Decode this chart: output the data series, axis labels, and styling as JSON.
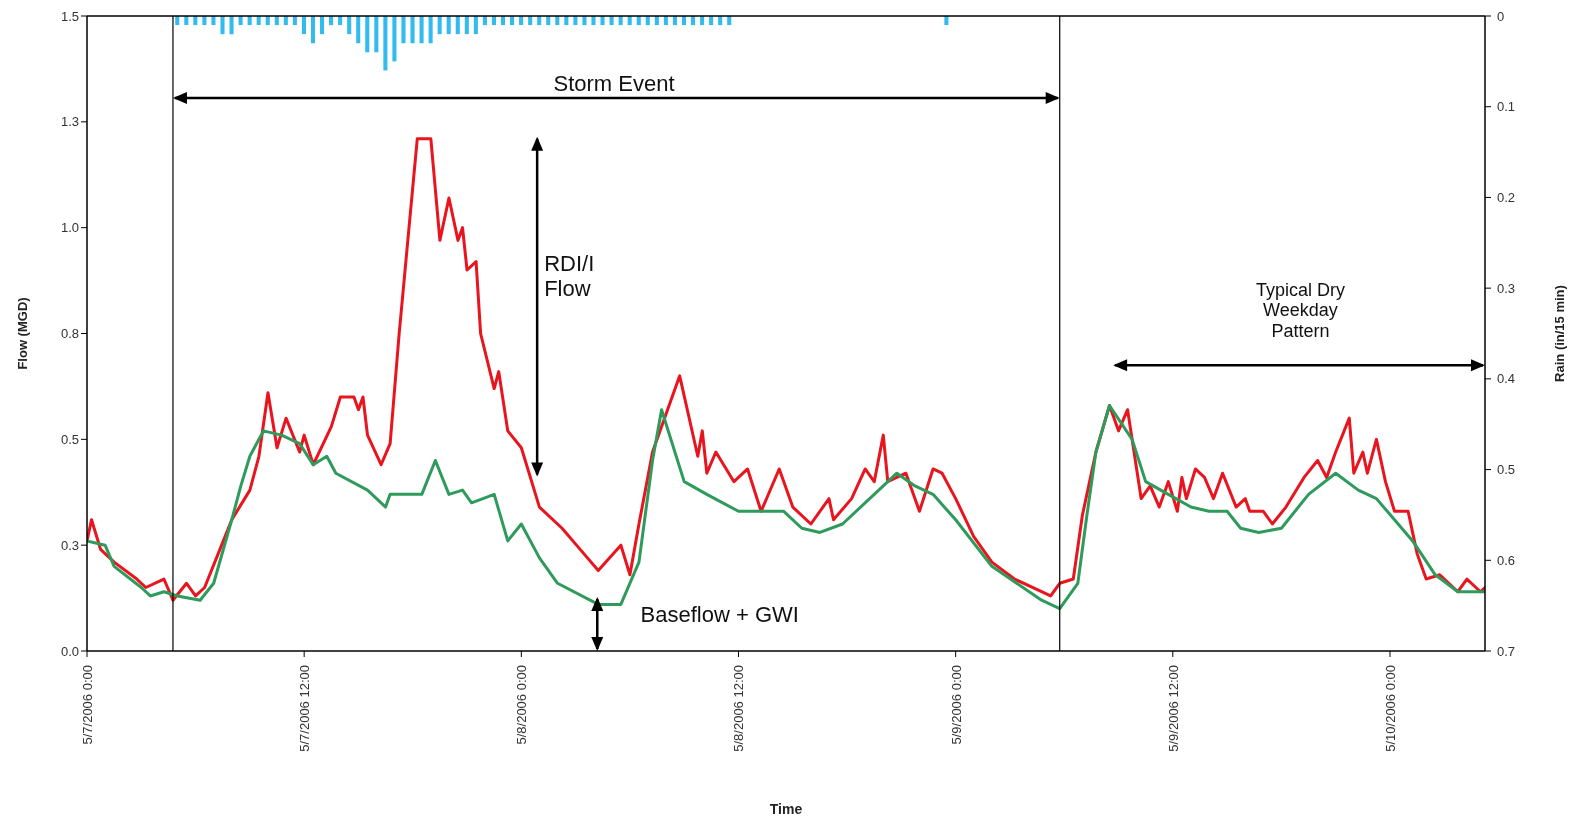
{
  "chart_data": {
    "type": "line",
    "xlabel": "Time",
    "ylabel": "Flow (MGD)",
    "y2label": "Rain (in/15 min)",
    "annotations": [
      "Storm Event",
      "RDI/I Flow",
      "Baseflow + GWI",
      "Typical Dry Weekday Pattern"
    ],
    "xlim": [
      "2006-05-07T00:00",
      "2006-05-10T05:15"
    ],
    "xticks": [
      {
        "value": "2006-05-07T00:00",
        "label": "5/7/2006 0:00"
      },
      {
        "value": "2006-05-07T12:00",
        "label": "5/7/2006 12:00"
      },
      {
        "value": "2006-05-08T00:00",
        "label": "5/8/2006 0:00"
      },
      {
        "value": "2006-05-08T12:00",
        "label": "5/8/2006 12:00"
      },
      {
        "value": "2006-05-09T00:00",
        "label": "5/9/2006 0:00"
      },
      {
        "value": "2006-05-09T12:00",
        "label": "5/9/2006 12:00"
      },
      {
        "value": "2006-05-10T00:00",
        "label": "5/10/2006 0:00"
      }
    ],
    "ylim": [
      0,
      1.5
    ],
    "yticks": [
      {
        "value": 0,
        "label": "0.0"
      },
      {
        "value": 0.25,
        "label": "0.3"
      },
      0.5,
      {
        "value": 0.75,
        "label": "0.8"
      },
      {
        "value": 1,
        "label": "1.0"
      },
      {
        "value": 1.25,
        "label": "1.3"
      },
      1.5
    ],
    "y2lim": [
      0.7,
      0
    ],
    "y2ticks": [
      0,
      0.1,
      0.2,
      0.3,
      0.4,
      0.5,
      0.6,
      0.7
    ],
    "ref_lines": [
      {
        "axis": "x",
        "value": "2006-05-07T04:45",
        "color": "#000000"
      },
      {
        "axis": "x",
        "value": "2006-05-09T05:45",
        "color": "#000000"
      }
    ],
    "series": [
      {
        "type": "bar",
        "axis": "y2",
        "color": "#33bbee",
        "x": [
          "2006-05-07T05:00",
          "2006-05-07T05:30",
          "2006-05-07T06:00",
          "2006-05-07T06:30",
          "2006-05-07T07:00",
          "2006-05-07T07:30",
          "2006-05-07T08:00",
          "2006-05-07T08:30",
          "2006-05-07T09:00",
          "2006-05-07T09:30",
          "2006-05-07T10:00",
          "2006-05-07T10:30",
          "2006-05-07T11:00",
          "2006-05-07T11:30",
          "2006-05-07T12:00",
          "2006-05-07T12:30",
          "2006-05-07T13:00",
          "2006-05-07T13:30",
          "2006-05-07T14:00",
          "2006-05-07T14:30",
          "2006-05-07T15:00",
          "2006-05-07T15:30",
          "2006-05-07T16:00",
          "2006-05-07T16:30",
          "2006-05-07T17:00",
          "2006-05-07T17:30",
          "2006-05-07T18:00",
          "2006-05-07T18:30",
          "2006-05-07T19:00",
          "2006-05-07T19:30",
          "2006-05-07T20:00",
          "2006-05-07T20:30",
          "2006-05-07T21:00",
          "2006-05-07T21:30",
          "2006-05-07T22:00",
          "2006-05-07T22:30",
          "2006-05-07T23:00",
          "2006-05-07T23:30",
          "2006-05-08T00:00",
          "2006-05-08T00:30",
          "2006-05-08T01:00",
          "2006-05-08T01:30",
          "2006-05-08T02:00",
          "2006-05-08T02:30",
          "2006-05-08T03:00",
          "2006-05-08T03:30",
          "2006-05-08T04:00",
          "2006-05-08T04:30",
          "2006-05-08T05:00",
          "2006-05-08T05:30",
          "2006-05-08T06:00",
          "2006-05-08T06:30",
          "2006-05-08T07:00",
          "2006-05-08T07:30",
          "2006-05-08T08:00",
          "2006-05-08T08:30",
          "2006-05-08T09:00",
          "2006-05-08T09:30",
          "2006-05-08T10:00",
          "2006-05-08T10:30",
          "2006-05-08T11:00",
          "2006-05-08T11:30",
          "2006-05-08T23:30"
        ],
        "values": [
          0.01,
          0.01,
          0.01,
          0.01,
          0.01,
          0.02,
          0.02,
          0.01,
          0.01,
          0.01,
          0.01,
          0.01,
          0.01,
          0.01,
          0.02,
          0.03,
          0.02,
          0.01,
          0.01,
          0.02,
          0.03,
          0.04,
          0.04,
          0.06,
          0.05,
          0.03,
          0.03,
          0.03,
          0.03,
          0.02,
          0.02,
          0.02,
          0.02,
          0.02,
          0.01,
          0.01,
          0.01,
          0.01,
          0.01,
          0.01,
          0.01,
          0.01,
          0.01,
          0.01,
          0.01,
          0.01,
          0.01,
          0.01,
          0.01,
          0.01,
          0.01,
          0.01,
          0.01,
          0.01,
          0.01,
          0.01,
          0.01,
          0.01,
          0.01,
          0.01,
          0.01,
          0.01,
          0.01
        ]
      },
      {
        "color": "#e8141e",
        "x": [
          "2006-05-07T00:00",
          "2006-05-07T00:15",
          "2006-05-07T00:45",
          "2006-05-07T01:30",
          "2006-05-07T02:45",
          "2006-05-07T03:15",
          "2006-05-07T04:15",
          "2006-05-07T04:45",
          "2006-05-07T05:30",
          "2006-05-07T06:00",
          "2006-05-07T06:30",
          "2006-05-07T07:15",
          "2006-05-07T08:00",
          "2006-05-07T09:00",
          "2006-05-07T09:30",
          "2006-05-07T10:00",
          "2006-05-07T10:30",
          "2006-05-07T11:00",
          "2006-05-07T11:45",
          "2006-05-07T12:00",
          "2006-05-07T12:30",
          "2006-05-07T13:30",
          "2006-05-07T14:00",
          "2006-05-07T14:45",
          "2006-05-07T15:00",
          "2006-05-07T15:15",
          "2006-05-07T15:30",
          "2006-05-07T16:15",
          "2006-05-07T16:45",
          "2006-05-07T17:15",
          "2006-05-07T18:15",
          "2006-05-07T19:00",
          "2006-05-07T19:30",
          "2006-05-07T20:00",
          "2006-05-07T20:30",
          "2006-05-07T20:45",
          "2006-05-07T21:00",
          "2006-05-07T21:30",
          "2006-05-07T21:45",
          "2006-05-07T22:30",
          "2006-05-07T22:45",
          "2006-05-07T23:15",
          "2006-05-08T00:00",
          "2006-05-08T01:00",
          "2006-05-08T02:15",
          "2006-05-08T03:15",
          "2006-05-08T04:15",
          "2006-05-08T05:30",
          "2006-05-08T06:00",
          "2006-05-08T06:30",
          "2006-05-08T07:15",
          "2006-05-08T08:45",
          "2006-05-08T09:45",
          "2006-05-08T10:00",
          "2006-05-08T10:15",
          "2006-05-08T10:45",
          "2006-05-08T11:45",
          "2006-05-08T12:30",
          "2006-05-08T13:15",
          "2006-05-08T14:15",
          "2006-05-08T15:00",
          "2006-05-08T16:00",
          "2006-05-08T17:00",
          "2006-05-08T17:15",
          "2006-05-08T18:15",
          "2006-05-08T19:00",
          "2006-05-08T19:30",
          "2006-05-08T20:00",
          "2006-05-08T20:15",
          "2006-05-08T21:15",
          "2006-05-08T22:00",
          "2006-05-08T22:45",
          "2006-05-08T23:15",
          "2006-05-09T00:00",
          "2006-05-09T01:00",
          "2006-05-09T02:00",
          "2006-05-09T03:15",
          "2006-05-09T04:45",
          "2006-05-09T05:15",
          "2006-05-09T05:45",
          "2006-05-09T06:30",
          "2006-05-09T07:00",
          "2006-05-09T07:45",
          "2006-05-09T08:30",
          "2006-05-09T09:00",
          "2006-05-09T09:30",
          "2006-05-09T10:15",
          "2006-05-09T10:45",
          "2006-05-09T11:15",
          "2006-05-09T11:45",
          "2006-05-09T12:15",
          "2006-05-09T12:30",
          "2006-05-09T12:45",
          "2006-05-09T13:15",
          "2006-05-09T13:45",
          "2006-05-09T14:15",
          "2006-05-09T14:45",
          "2006-05-09T15:30",
          "2006-05-09T16:00",
          "2006-05-09T16:15",
          "2006-05-09T17:00",
          "2006-05-09T17:30",
          "2006-05-09T18:15",
          "2006-05-09T19:15",
          "2006-05-09T20:00",
          "2006-05-09T20:30",
          "2006-05-09T21:00",
          "2006-05-09T21:45",
          "2006-05-09T22:00",
          "2006-05-09T22:30",
          "2006-05-09T22:45",
          "2006-05-09T23:15",
          "2006-05-09T23:45",
          "2006-05-10T00:15",
          "2006-05-10T01:00",
          "2006-05-10T01:30",
          "2006-05-10T02:00",
          "2006-05-10T02:45",
          "2006-05-10T03:45",
          "2006-05-10T04:15",
          "2006-05-10T05:00",
          "2006-05-10T05:15"
        ],
        "values": [
          0.26,
          0.31,
          0.24,
          0.21,
          0.17,
          0.15,
          0.17,
          0.12,
          0.16,
          0.13,
          0.15,
          0.23,
          0.31,
          0.38,
          0.46,
          0.61,
          0.48,
          0.55,
          0.47,
          0.51,
          0.44,
          0.53,
          0.6,
          0.6,
          0.57,
          0.6,
          0.51,
          0.44,
          0.49,
          0.75,
          1.21,
          1.21,
          0.97,
          1.07,
          0.97,
          1.0,
          0.9,
          0.92,
          0.75,
          0.62,
          0.66,
          0.52,
          0.48,
          0.34,
          0.29,
          0.24,
          0.19,
          0.25,
          0.18,
          0.3,
          0.47,
          0.65,
          0.46,
          0.52,
          0.42,
          0.47,
          0.4,
          0.43,
          0.33,
          0.43,
          0.34,
          0.3,
          0.36,
          0.31,
          0.36,
          0.43,
          0.4,
          0.51,
          0.4,
          0.42,
          0.33,
          0.43,
          0.42,
          0.36,
          0.27,
          0.21,
          0.17,
          0.14,
          0.13,
          0.16,
          0.17,
          0.32,
          0.47,
          0.58,
          0.52,
          0.57,
          0.36,
          0.39,
          0.34,
          0.4,
          0.33,
          0.41,
          0.36,
          0.43,
          0.41,
          0.36,
          0.42,
          0.34,
          0.36,
          0.33,
          0.33,
          0.3,
          0.34,
          0.41,
          0.45,
          0.41,
          0.47,
          0.55,
          0.42,
          0.47,
          0.42,
          0.5,
          0.4,
          0.33,
          0.33,
          0.23,
          0.17,
          0.18,
          0.14,
          0.17,
          0.14,
          0.15
        ]
      },
      {
        "color": "#2e9a5c",
        "x": [
          "2006-05-07T00:00",
          "2006-05-07T01:00",
          "2006-05-07T01:30",
          "2006-05-07T03:00",
          "2006-05-07T03:30",
          "2006-05-07T04:15",
          "2006-05-07T05:00",
          "2006-05-07T06:15",
          "2006-05-07T07:00",
          "2006-05-07T08:00",
          "2006-05-07T08:30",
          "2006-05-07T09:00",
          "2006-05-07T09:45",
          "2006-05-07T10:45",
          "2006-05-07T11:45",
          "2006-05-07T12:30",
          "2006-05-07T13:15",
          "2006-05-07T13:45",
          "2006-05-07T15:30",
          "2006-05-07T16:30",
          "2006-05-07T16:45",
          "2006-05-07T18:30",
          "2006-05-07T19:15",
          "2006-05-07T20:00",
          "2006-05-07T20:45",
          "2006-05-07T21:15",
          "2006-05-07T22:30",
          "2006-05-07T23:15",
          "2006-05-08T00:00",
          "2006-05-08T01:00",
          "2006-05-08T02:00",
          "2006-05-08T04:15",
          "2006-05-08T05:30",
          "2006-05-08T06:30",
          "2006-05-08T07:15",
          "2006-05-08T07:45",
          "2006-05-08T09:00",
          "2006-05-08T10:15",
          "2006-05-08T12:00",
          "2006-05-08T14:30",
          "2006-05-08T15:30",
          "2006-05-08T16:30",
          "2006-05-08T17:45",
          "2006-05-08T19:30",
          "2006-05-08T20:45",
          "2006-05-08T21:45",
          "2006-05-08T22:45",
          "2006-05-09T00:00",
          "2006-05-09T02:00",
          "2006-05-09T04:45",
          "2006-05-09T05:45",
          "2006-05-09T06:45",
          "2006-05-09T07:15",
          "2006-05-09T07:45",
          "2006-05-09T08:30",
          "2006-05-09T09:45",
          "2006-05-09T10:30",
          "2006-05-09T11:45",
          "2006-05-09T13:00",
          "2006-05-09T14:00",
          "2006-05-09T15:00",
          "2006-05-09T15:45",
          "2006-05-09T16:45",
          "2006-05-09T18:00",
          "2006-05-09T19:30",
          "2006-05-09T21:00",
          "2006-05-09T22:15",
          "2006-05-09T23:15",
          "2006-05-10T00:15",
          "2006-05-10T01:15",
          "2006-05-10T02:30",
          "2006-05-10T03:45",
          "2006-05-10T05:15"
        ],
        "values": [
          0.26,
          0.25,
          0.2,
          0.15,
          0.13,
          0.14,
          0.13,
          0.12,
          0.16,
          0.31,
          0.39,
          0.46,
          0.52,
          0.51,
          0.49,
          0.44,
          0.46,
          0.42,
          0.38,
          0.34,
          0.37,
          0.37,
          0.45,
          0.37,
          0.38,
          0.35,
          0.37,
          0.26,
          0.3,
          0.22,
          0.16,
          0.11,
          0.11,
          0.21,
          0.45,
          0.57,
          0.4,
          0.37,
          0.33,
          0.33,
          0.29,
          0.28,
          0.3,
          0.37,
          0.42,
          0.39,
          0.37,
          0.31,
          0.2,
          0.12,
          0.1,
          0.16,
          0.32,
          0.47,
          0.58,
          0.5,
          0.4,
          0.37,
          0.34,
          0.33,
          0.33,
          0.29,
          0.28,
          0.29,
          0.37,
          0.42,
          0.38,
          0.36,
          0.31,
          0.26,
          0.18,
          0.14,
          0.14
        ]
      }
    ]
  }
}
